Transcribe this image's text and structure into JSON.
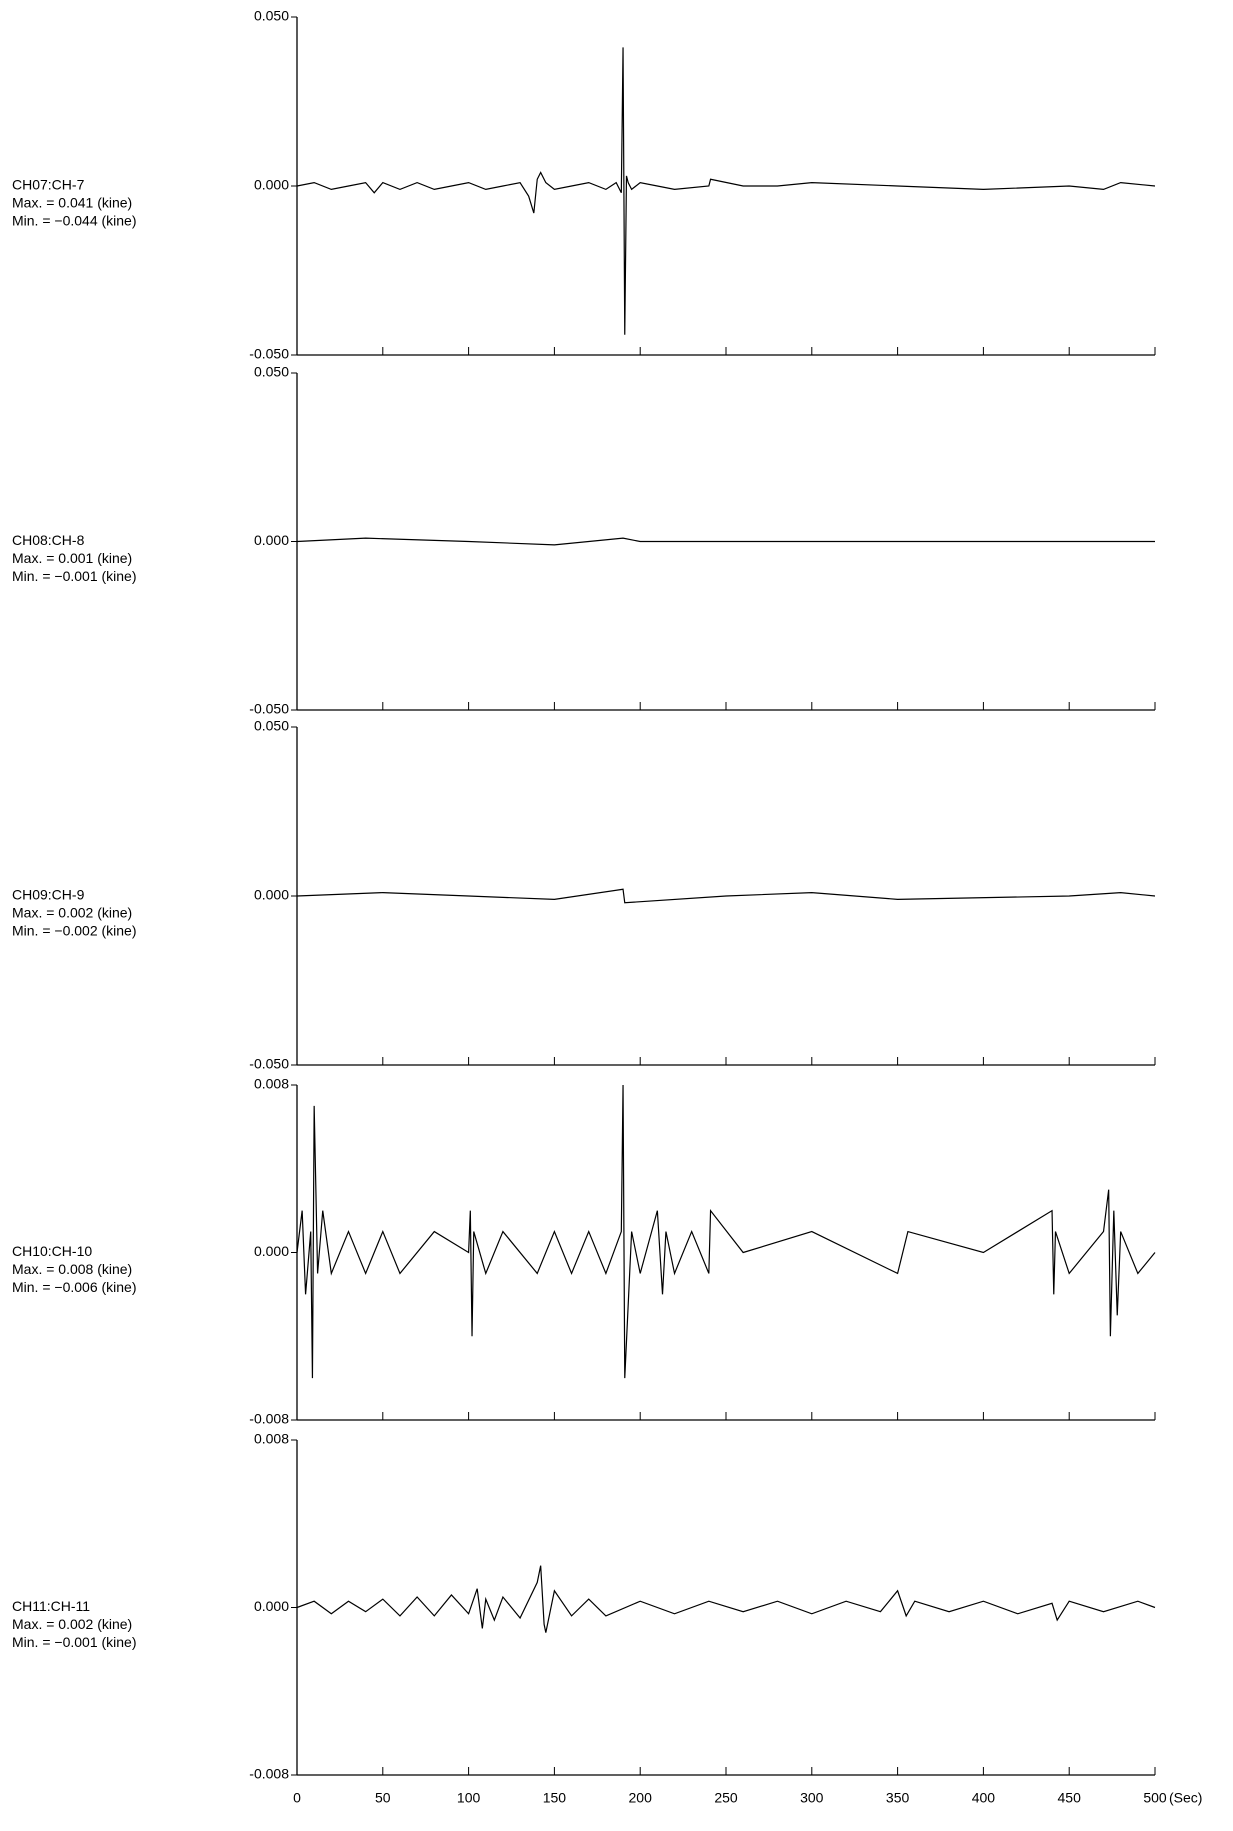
{
  "chart_data": [
    {
      "type": "line",
      "channel": "CH07:CH-7",
      "max_label": "Max. = 0.041 (kine)",
      "min_label": "Min. = −0.044 (kine)",
      "xlim": [
        0,
        500
      ],
      "ylim": [
        -0.05,
        0.05
      ],
      "yticks": [
        {
          "value": -0.05,
          "label": "-0.050"
        },
        {
          "value": 0,
          "label": "0.000"
        },
        {
          "value": 0.05,
          "label": "0.050"
        }
      ],
      "color": "#000000",
      "x": [
        0,
        10,
        20,
        30,
        40,
        45,
        50,
        60,
        70,
        80,
        90,
        100,
        110,
        120,
        130,
        135,
        138,
        140,
        142,
        145,
        150,
        160,
        170,
        180,
        186,
        189,
        190,
        191,
        192,
        193,
        195,
        200,
        210,
        220,
        240,
        241,
        260,
        280,
        300,
        350,
        400,
        450,
        470,
        480,
        500
      ],
      "values": [
        0,
        0.001,
        -0.001,
        0,
        0.001,
        -0.002,
        0.001,
        -0.001,
        0.001,
        -0.001,
        0,
        0.001,
        -0.001,
        0,
        0.001,
        -0.003,
        -0.008,
        0.002,
        0.004,
        0.001,
        -0.001,
        0,
        0.001,
        -0.001,
        0.001,
        -0.002,
        0.041,
        -0.044,
        0.003,
        0.001,
        -0.001,
        0.001,
        0,
        -0.001,
        0,
        0.002,
        0,
        0,
        0.001,
        0,
        -0.001,
        0,
        -0.001,
        0.001,
        0
      ]
    },
    {
      "type": "line",
      "channel": "CH08:CH-8",
      "max_label": "Max. = 0.001 (kine)",
      "min_label": "Min. = −0.001 (kine)",
      "xlim": [
        0,
        500
      ],
      "ylim": [
        -0.05,
        0.05
      ],
      "yticks": [
        {
          "value": -0.05,
          "label": "-0.050"
        },
        {
          "value": 0,
          "label": "0.000"
        },
        {
          "value": 0.05,
          "label": "0.050"
        }
      ],
      "color": "#000000",
      "x": [
        0,
        40,
        100,
        150,
        190,
        200,
        300,
        400,
        500
      ],
      "values": [
        0,
        0.001,
        0,
        -0.001,
        0.001,
        0,
        0,
        0,
        0
      ]
    },
    {
      "type": "line",
      "channel": "CH09:CH-9",
      "max_label": "Max. = 0.002 (kine)",
      "min_label": "Min. = −0.002 (kine)",
      "xlim": [
        0,
        500
      ],
      "ylim": [
        -0.05,
        0.05
      ],
      "yticks": [
        {
          "value": -0.05,
          "label": "-0.050"
        },
        {
          "value": 0,
          "label": "0.000"
        },
        {
          "value": 0.05,
          "label": "0.050"
        }
      ],
      "color": "#000000",
      "x": [
        0,
        50,
        100,
        150,
        190,
        191,
        250,
        300,
        350,
        450,
        480,
        500
      ],
      "values": [
        0,
        0.001,
        0,
        -0.001,
        0.002,
        -0.002,
        0,
        0.001,
        -0.001,
        0,
        0.001,
        0
      ]
    },
    {
      "type": "line",
      "channel": "CH10:CH-10",
      "max_label": "Max. = 0.008 (kine)",
      "min_label": "Min. = −0.006 (kine)",
      "xlim": [
        0,
        500
      ],
      "ylim": [
        -0.008,
        0.008
      ],
      "yticks": [
        {
          "value": -0.008,
          "label": "-0.008"
        },
        {
          "value": 0,
          "label": "0.000"
        },
        {
          "value": 0.008,
          "label": "0.008"
        }
      ],
      "color": "#000000",
      "x": [
        0,
        3,
        5,
        8,
        9,
        10,
        12,
        15,
        20,
        30,
        40,
        50,
        60,
        80,
        100,
        101,
        102,
        103,
        110,
        120,
        140,
        150,
        160,
        170,
        180,
        189,
        190,
        191,
        195,
        200,
        210,
        213,
        215,
        220,
        230,
        240,
        241,
        260,
        300,
        350,
        356,
        400,
        440,
        441,
        442,
        450,
        470,
        473,
        474,
        476,
        478,
        480,
        490,
        500
      ],
      "values": [
        0,
        0.002,
        -0.002,
        0.001,
        -0.006,
        0.007,
        -0.001,
        0.002,
        -0.001,
        0.001,
        -0.001,
        0.001,
        -0.001,
        0.001,
        0,
        0.002,
        -0.004,
        0.001,
        -0.001,
        0.001,
        -0.001,
        0.001,
        -0.001,
        0.001,
        -0.001,
        0.001,
        0.008,
        -0.006,
        0.001,
        -0.001,
        0.002,
        -0.002,
        0.001,
        -0.001,
        0.001,
        -0.001,
        0.002,
        0,
        0.001,
        -0.001,
        0.001,
        0,
        0.002,
        -0.002,
        0.001,
        -0.001,
        0.001,
        0.003,
        -0.004,
        0.002,
        -0.003,
        0.001,
        -0.001,
        0
      ]
    },
    {
      "type": "line",
      "channel": "CH11:CH-11",
      "max_label": "Max. = 0.002 (kine)",
      "min_label": "Min. = −0.001 (kine)",
      "xlim": [
        0,
        500
      ],
      "ylim": [
        -0.008,
        0.008
      ],
      "yticks": [
        {
          "value": -0.008,
          "label": "-0.008"
        },
        {
          "value": 0,
          "label": "0.000"
        },
        {
          "value": 0.008,
          "label": "0.008"
        }
      ],
      "xticks": [
        0,
        50,
        100,
        150,
        200,
        250,
        300,
        350,
        400,
        450,
        500
      ],
      "xlabel": "(Sec)",
      "color": "#000000",
      "x": [
        0,
        10,
        20,
        30,
        40,
        50,
        60,
        70,
        80,
        90,
        100,
        105,
        108,
        110,
        115,
        120,
        130,
        140,
        142,
        144,
        145,
        150,
        160,
        170,
        180,
        200,
        220,
        240,
        260,
        280,
        300,
        320,
        340,
        350,
        355,
        360,
        380,
        400,
        420,
        440,
        443,
        450,
        470,
        490,
        500
      ],
      "values": [
        0,
        0.0003,
        -0.0003,
        0.0003,
        -0.0002,
        0.0004,
        -0.0004,
        0.0005,
        -0.0004,
        0.0006,
        -0.0003,
        0.0009,
        -0.001,
        0.0004,
        -0.0006,
        0.0005,
        -0.0005,
        0.0012,
        0.002,
        -0.0008,
        -0.0012,
        0.0008,
        -0.0004,
        0.0004,
        -0.0004,
        0.0003,
        -0.0003,
        0.0003,
        -0.0002,
        0.0003,
        -0.0003,
        0.0003,
        -0.0002,
        0.0008,
        -0.0004,
        0.0003,
        -0.0002,
        0.0003,
        -0.0003,
        0.0002,
        -0.0006,
        0.0003,
        -0.0002,
        0.0003,
        0
      ]
    }
  ]
}
